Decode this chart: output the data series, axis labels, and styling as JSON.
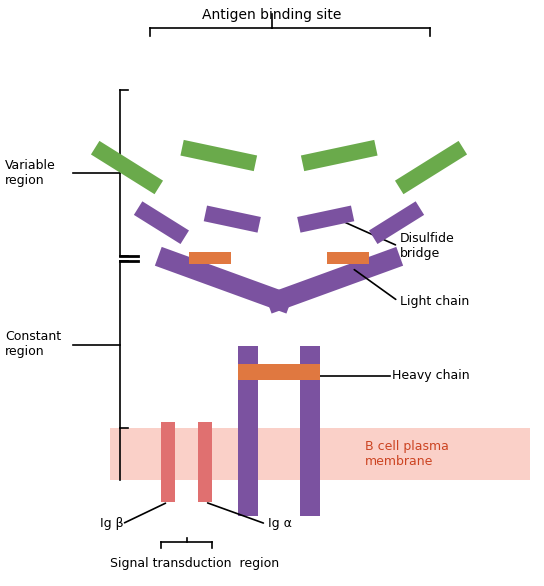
{
  "bg_color": "#ffffff",
  "purple": "#7b52a0",
  "green": "#6aaa4b",
  "orange": "#e07840",
  "membrane_light": "#fad0c8",
  "ig_color": "#e07070",
  "title": "Antigen binding site",
  "label_variable": "Variable\nregion",
  "label_constant": "Constant\nregion",
  "label_disulfide": "Disulfide\nbridge",
  "label_light": "Light chain",
  "label_heavy": "Heavy chain",
  "label_membrane": "B cell plasma\nmembrane",
  "label_igbeta": "Ig β",
  "label_igalpha": "Ig α",
  "label_signal": "Signal transduction  region",
  "membrane_text_color": "#cc4422"
}
